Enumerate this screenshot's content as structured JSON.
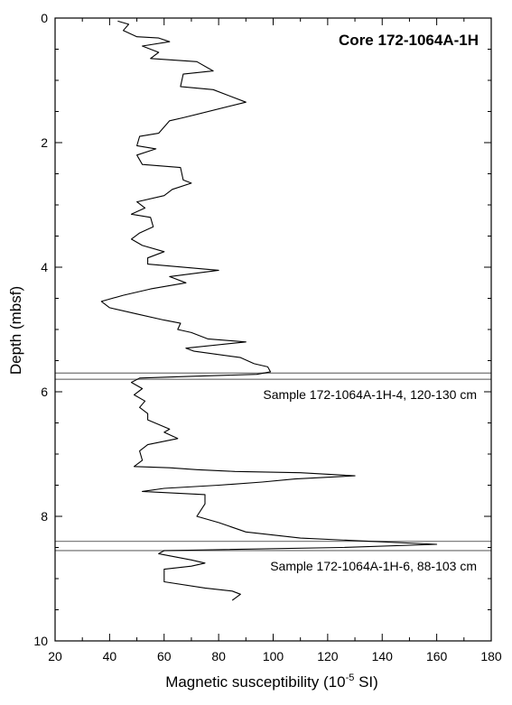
{
  "chart_data": {
    "type": "line",
    "title": "Core 172-1064A-1H",
    "xlabel": "Magnetic susceptibility (10",
    "xlabel_sup": "-5",
    "xlabel_tail": " SI)",
    "ylabel": "Depth (mbsf)",
    "xlim": [
      20,
      180
    ],
    "ylim": [
      0,
      10
    ],
    "y_inverted": true,
    "x_ticks": [
      20,
      40,
      60,
      80,
      100,
      120,
      140,
      160,
      180
    ],
    "y_ticks": [
      0,
      2,
      4,
      6,
      8,
      10
    ],
    "grid": false,
    "series": [
      {
        "x": [
          43,
          47,
          45,
          50,
          58,
          62,
          52,
          58,
          55,
          72,
          78,
          67,
          66,
          78,
          90,
          67,
          62,
          58,
          51,
          50,
          57,
          50,
          52,
          66,
          67,
          70,
          63,
          60,
          50,
          53,
          48,
          55,
          56,
          51,
          48,
          52,
          60,
          54,
          54,
          80,
          62,
          68,
          55,
          45,
          37,
          40,
          50,
          60,
          66,
          65,
          70,
          76,
          90,
          68,
          71,
          88,
          93,
          98,
          99,
          94,
          72,
          51,
          48,
          52,
          49,
          53,
          51,
          54,
          54,
          62,
          60,
          65,
          54,
          51,
          52,
          49,
          62,
          72,
          86,
          110,
          130,
          108,
          96,
          80,
          60,
          52,
          75,
          75,
          72,
          80,
          90,
          110,
          135,
          160,
          125,
          60,
          58,
          70,
          75,
          70,
          60,
          60,
          75,
          85,
          88,
          85
        ],
        "y": [
          0.05,
          0.1,
          0.2,
          0.3,
          0.32,
          0.38,
          0.45,
          0.55,
          0.65,
          0.7,
          0.85,
          0.9,
          1.1,
          1.15,
          1.35,
          1.6,
          1.65,
          1.85,
          1.9,
          2.05,
          2.1,
          2.2,
          2.35,
          2.4,
          2.6,
          2.65,
          2.75,
          2.85,
          2.95,
          3.05,
          3.15,
          3.2,
          3.35,
          3.45,
          3.55,
          3.65,
          3.75,
          3.85,
          3.95,
          4.05,
          4.15,
          4.25,
          4.35,
          4.45,
          4.55,
          4.65,
          4.75,
          4.85,
          4.9,
          5.0,
          5.05,
          5.15,
          5.2,
          5.3,
          5.35,
          5.45,
          5.55,
          5.6,
          5.68,
          5.72,
          5.75,
          5.78,
          5.85,
          5.95,
          6.05,
          6.15,
          6.25,
          6.35,
          6.45,
          6.6,
          6.65,
          6.75,
          6.85,
          6.95,
          7.1,
          7.2,
          7.22,
          7.25,
          7.28,
          7.3,
          7.35,
          7.4,
          7.45,
          7.5,
          7.55,
          7.6,
          7.65,
          7.8,
          8.0,
          8.1,
          8.25,
          8.35,
          8.4,
          8.45,
          8.5,
          8.55,
          8.6,
          8.7,
          8.75,
          8.8,
          8.85,
          9.05,
          9.15,
          9.2,
          9.25,
          9.35
        ]
      }
    ],
    "bands": [
      {
        "label": "Sample 172-1064A-1H-4, 120-130 cm",
        "y0": 5.7,
        "y1": 5.8
      },
      {
        "label": "Sample 172-1064A-1H-6, 88-103 cm",
        "y0": 8.4,
        "y1": 8.55
      }
    ]
  }
}
